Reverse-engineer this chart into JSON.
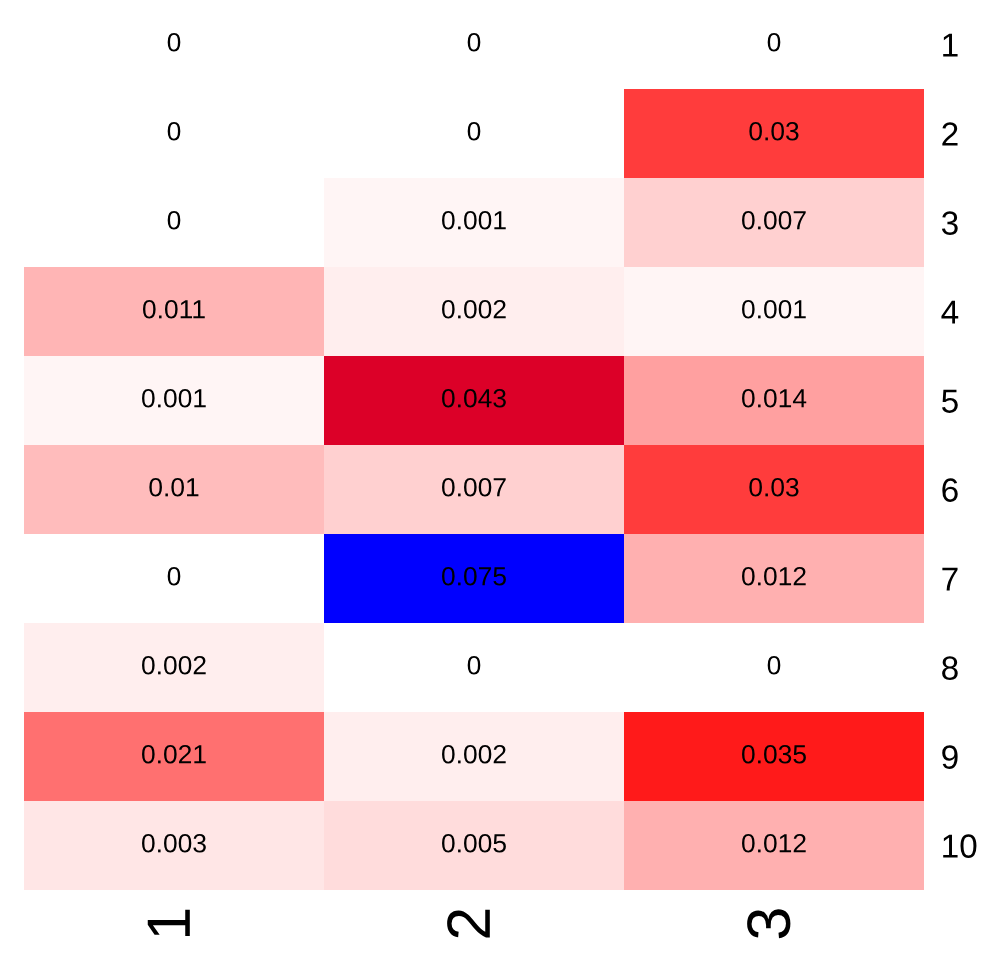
{
  "chart_data": {
    "type": "heatmap",
    "categories": [
      "1",
      "2",
      "3"
    ],
    "y_categories": [
      "1",
      "2",
      "3",
      "4",
      "5",
      "6",
      "7",
      "8",
      "9",
      "10"
    ],
    "cells": [
      [
        0,
        0,
        0
      ],
      [
        0,
        0,
        0.03
      ],
      [
        0,
        0.001,
        0.007
      ],
      [
        0.011,
        0.002,
        0.001
      ],
      [
        0.001,
        0.043,
        0.014
      ],
      [
        0.01,
        0.007,
        0.03
      ],
      [
        0,
        0.075,
        0.012
      ],
      [
        0.002,
        0,
        0
      ],
      [
        0.021,
        0.002,
        0.035
      ],
      [
        0.003,
        0.005,
        0.012
      ]
    ],
    "colors": [
      [
        "#ffffff",
        "#ffffff",
        "#ffffff"
      ],
      [
        "#ffffff",
        "#ffffff",
        "#ff3c3c"
      ],
      [
        "#ffffff",
        "#fff5f5",
        "#ffd0d0"
      ],
      [
        "#ffb5b5",
        "#ffeeee",
        "#fff5f5"
      ],
      [
        "#fff5f5",
        "#dc0028",
        "#ffa0a0"
      ],
      [
        "#ffbcbc",
        "#ffd0d0",
        "#ff3c3c"
      ],
      [
        "#ffffff",
        "#0000ff",
        "#ffb0b0"
      ],
      [
        "#ffeeee",
        "#ffffff",
        "#ffffff"
      ],
      [
        "#ff7070",
        "#ffeeee",
        "#ff1a1a"
      ],
      [
        "#ffe6e6",
        "#ffdcdc",
        "#ffb0b0"
      ]
    ],
    "data_labels": true
  }
}
